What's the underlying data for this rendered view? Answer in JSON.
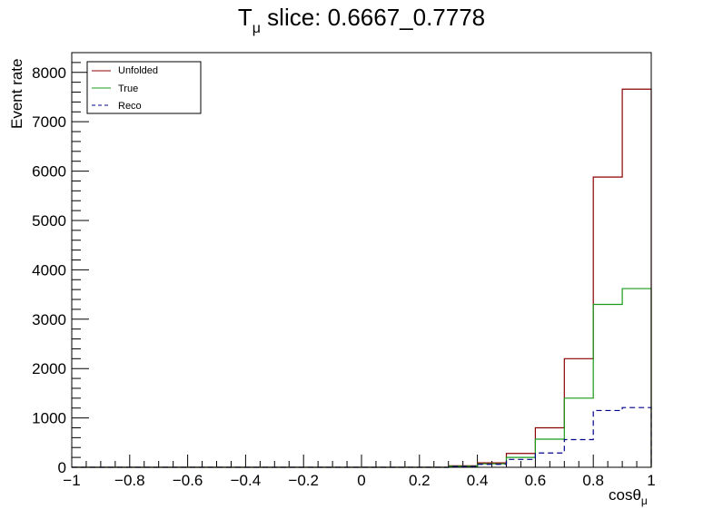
{
  "chart_data": {
    "type": "histogram-step",
    "title": {
      "prefix": "T",
      "subscript": "μ",
      "suffix": " slice: 0.6667_0.7778"
    },
    "xlabel": {
      "main": "cosθ",
      "subscript": "μ"
    },
    "ylabel": "Event rate",
    "xlim": [
      -1,
      1
    ],
    "ylim": [
      0,
      8400
    ],
    "x_ticks": [
      -1,
      -0.8,
      -0.6,
      -0.4,
      -0.2,
      0,
      0.2,
      0.4,
      0.6,
      0.8,
      1
    ],
    "x_tick_labels": [
      "−1",
      "−0.8",
      "−0.6",
      "−0.4",
      "−0.2",
      "0",
      "0.2",
      "0.4",
      "0.6",
      "0.8",
      "1"
    ],
    "y_ticks": [
      0,
      1000,
      2000,
      3000,
      4000,
      5000,
      6000,
      7000,
      8000
    ],
    "y_tick_labels": [
      "0",
      "1000",
      "2000",
      "3000",
      "4000",
      "5000",
      "6000",
      "7000",
      "8000"
    ],
    "bin_edges": [
      -1,
      -0.9,
      -0.8,
      -0.7,
      -0.6,
      -0.5,
      -0.4,
      -0.3,
      -0.2,
      -0.1,
      0,
      0.1,
      0.2,
      0.3,
      0.4,
      0.5,
      0.6,
      0.7,
      0.8,
      0.9,
      1
    ],
    "legend_position": "top-left",
    "series": [
      {
        "name": "Unfolded",
        "color": "#8b0000",
        "dashed": false,
        "values": [
          0,
          0,
          0,
          0,
          0,
          0,
          0,
          0,
          0,
          0,
          0,
          0,
          0,
          30,
          90,
          280,
          800,
          2200,
          5880,
          7660
        ]
      },
      {
        "name": "True",
        "color": "#1a9a1a",
        "dashed": false,
        "values": [
          0,
          0,
          0,
          0,
          0,
          0,
          0,
          0,
          0,
          0,
          0,
          0,
          0,
          20,
          70,
          200,
          570,
          1400,
          3300,
          3620
        ]
      },
      {
        "name": "Reco",
        "color": "#00008b",
        "dashed": true,
        "values": [
          0,
          0,
          0,
          0,
          0,
          0,
          0,
          0,
          0,
          0,
          0,
          0,
          0,
          15,
          60,
          160,
          290,
          560,
          1150,
          1210
        ]
      }
    ]
  }
}
